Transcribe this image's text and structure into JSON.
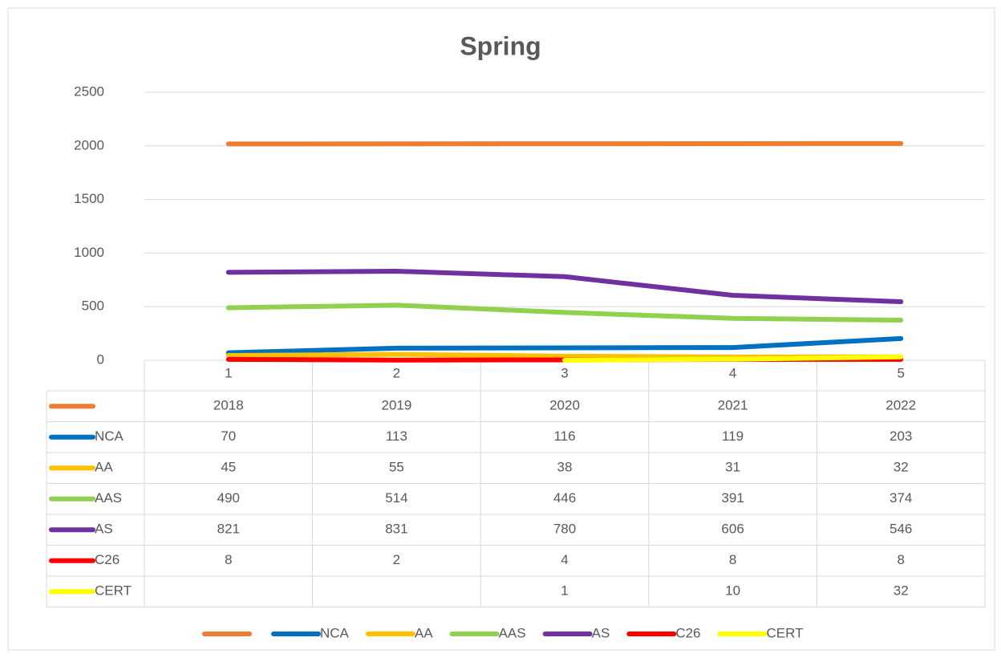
{
  "chart_data": {
    "type": "line",
    "title": "Spring",
    "categories": [
      1,
      2,
      3,
      4,
      5
    ],
    "series": [
      {
        "color": "#ed7d31",
        "values": [
          2018,
          2019,
          2020,
          2021,
          2022
        ]
      },
      {
        "name": "NCA",
        "color": "#0070c0",
        "values": [
          70,
          113,
          116,
          119,
          203
        ]
      },
      {
        "name": "AA",
        "color": "#ffc000",
        "values": [
          45,
          55,
          38,
          31,
          32
        ]
      },
      {
        "name": "AAS",
        "color": "#92d050",
        "values": [
          490,
          514,
          446,
          391,
          374
        ]
      },
      {
        "name": "AS",
        "color": "#7030a0",
        "values": [
          821,
          831,
          780,
          606,
          546
        ]
      },
      {
        "name": "C26",
        "color": "#ff0000",
        "values": [
          8,
          2,
          4,
          8,
          8
        ]
      },
      {
        "name": "CERT",
        "color": "#ffff00",
        "values": [
          null,
          null,
          1,
          10,
          32
        ]
      }
    ],
    "ylim": [
      0,
      2500
    ],
    "yticks": [
      0,
      500,
      1000,
      1500,
      2000,
      2500
    ],
    "grid": true,
    "legend": "bottom",
    "data_table": true
  }
}
